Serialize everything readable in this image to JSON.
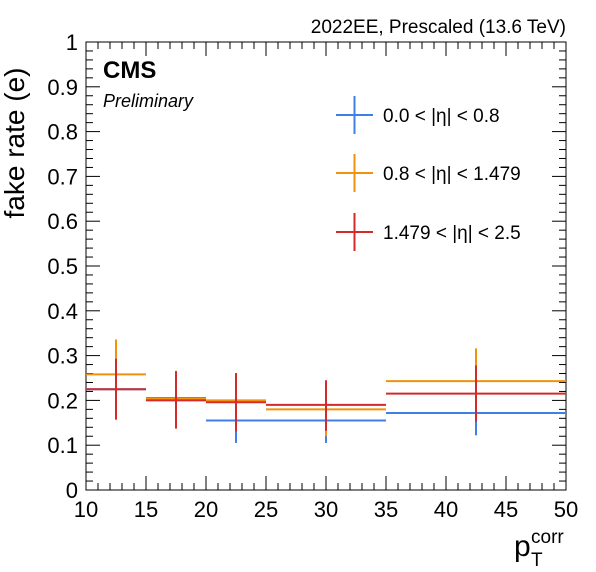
{
  "header": {
    "top_right": "2022EE, Prescaled (13.6 TeV)",
    "brand": "CMS",
    "status": "Preliminary"
  },
  "chart_data": {
    "type": "scatter",
    "style": "error-bar points (histogram bins)",
    "xlabel": {
      "main": "p",
      "sub": "T",
      "sup": "corr"
    },
    "ylabel": "fake rate (e)",
    "xlim": [
      10,
      50
    ],
    "ylim": [
      0,
      1
    ],
    "x_ticks": [
      "10",
      "15",
      "20",
      "25",
      "30",
      "35",
      "40",
      "45",
      "50"
    ],
    "y_ticks": [
      "0",
      "0.1",
      "0.2",
      "0.3",
      "0.4",
      "0.5",
      "0.6",
      "0.7",
      "0.8",
      "0.9",
      "1"
    ],
    "grid": false,
    "legend_position": "top-right",
    "bins": [
      [
        10,
        15
      ],
      [
        15,
        20
      ],
      [
        20,
        25
      ],
      [
        25,
        35
      ],
      [
        35,
        50
      ]
    ],
    "series": [
      {
        "name": "0.0 < |η| < 0.8",
        "color": "#3f7fe8",
        "values": [
          0.225,
          0.205,
          0.155,
          0.155,
          0.172
        ],
        "err_low": [
          0.065,
          0.065,
          0.05,
          0.05,
          0.05
        ],
        "err_high": [
          0.065,
          0.06,
          0.05,
          0.04,
          0.06
        ]
      },
      {
        "name": "0.8 < |η| < 1.479",
        "color": "#f0920e",
        "values": [
          0.258,
          0.203,
          0.2,
          0.18,
          0.243
        ],
        "err_low": [
          0.065,
          0.063,
          0.065,
          0.06,
          0.07
        ],
        "err_high": [
          0.078,
          0.063,
          0.06,
          0.06,
          0.073
        ]
      },
      {
        "name": "1.479 < |η| < 2.5",
        "color": "#d42a2a",
        "values": [
          0.225,
          0.2,
          0.196,
          0.19,
          0.215
        ],
        "err_low": [
          0.068,
          0.063,
          0.065,
          0.058,
          0.063
        ],
        "err_high": [
          0.068,
          0.065,
          0.065,
          0.055,
          0.063
        ]
      }
    ]
  }
}
